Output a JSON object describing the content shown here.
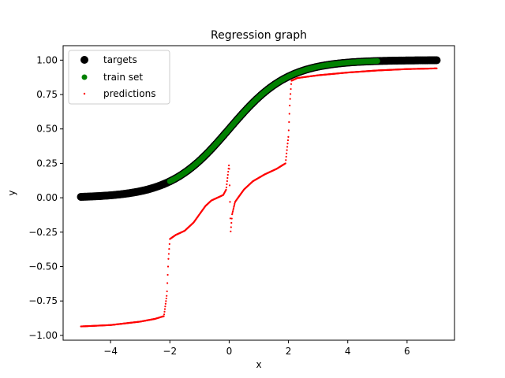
{
  "chart_data": {
    "type": "scatter",
    "title": "Regression graph",
    "xlabel": "x",
    "ylabel": "y",
    "xlim": [
      -5.6,
      7.6
    ],
    "ylim": [
      -1.035,
      1.105
    ],
    "x_ticks": [
      -4,
      -2,
      0,
      2,
      4,
      6
    ],
    "x_tick_labels": [
      "−4",
      "−2",
      "0",
      "2",
      "4",
      "6"
    ],
    "y_ticks": [
      -1.0,
      -0.75,
      -0.5,
      -0.25,
      0.0,
      0.25,
      0.5,
      0.75,
      1.0
    ],
    "y_tick_labels": [
      "−1.00",
      "−0.75",
      "−0.50",
      "−0.25",
      "0.00",
      "0.25",
      "0.50",
      "0.75",
      "1.00"
    ],
    "grid": false,
    "legend_position": "top-left",
    "series": [
      {
        "name": "targets",
        "color": "#000000",
        "marker": "large-circle",
        "x_range": [
          -5.0,
          7.0
        ],
        "curve": "sigmoid(x)"
      },
      {
        "name": "train set",
        "color": "#008000",
        "marker": "circle",
        "x_range": [
          -2.0,
          5.0
        ],
        "curve": "sigmoid(x)"
      },
      {
        "name": "predictions",
        "color": "#ff0000",
        "marker": "point",
        "x_range": [
          -5.0,
          7.0
        ],
        "points": [
          [
            -5.0,
            -0.935
          ],
          [
            -4.0,
            -0.925
          ],
          [
            -3.0,
            -0.9
          ],
          [
            -2.5,
            -0.88
          ],
          [
            -2.2,
            -0.86
          ],
          [
            -2.1,
            -0.7
          ],
          [
            -2.05,
            -0.45
          ],
          [
            -2.0,
            -0.3
          ],
          [
            -1.8,
            -0.27
          ],
          [
            -1.5,
            -0.24
          ],
          [
            -1.2,
            -0.18
          ],
          [
            -1.0,
            -0.12
          ],
          [
            -0.8,
            -0.06
          ],
          [
            -0.6,
            -0.02
          ],
          [
            -0.4,
            0.0
          ],
          [
            -0.2,
            0.02
          ],
          [
            -0.1,
            0.06
          ],
          [
            0.0,
            0.25
          ],
          [
            0.05,
            -0.25
          ],
          [
            0.1,
            -0.12
          ],
          [
            0.2,
            -0.03
          ],
          [
            0.3,
            0.0
          ],
          [
            0.5,
            0.06
          ],
          [
            0.8,
            0.12
          ],
          [
            1.2,
            0.17
          ],
          [
            1.6,
            0.21
          ],
          [
            1.9,
            0.25
          ],
          [
            2.0,
            0.45
          ],
          [
            2.05,
            0.7
          ],
          [
            2.1,
            0.85
          ],
          [
            2.3,
            0.87
          ],
          [
            3.0,
            0.89
          ],
          [
            4.0,
            0.91
          ],
          [
            5.0,
            0.925
          ],
          [
            6.0,
            0.935
          ],
          [
            7.0,
            0.94
          ]
        ]
      }
    ]
  }
}
